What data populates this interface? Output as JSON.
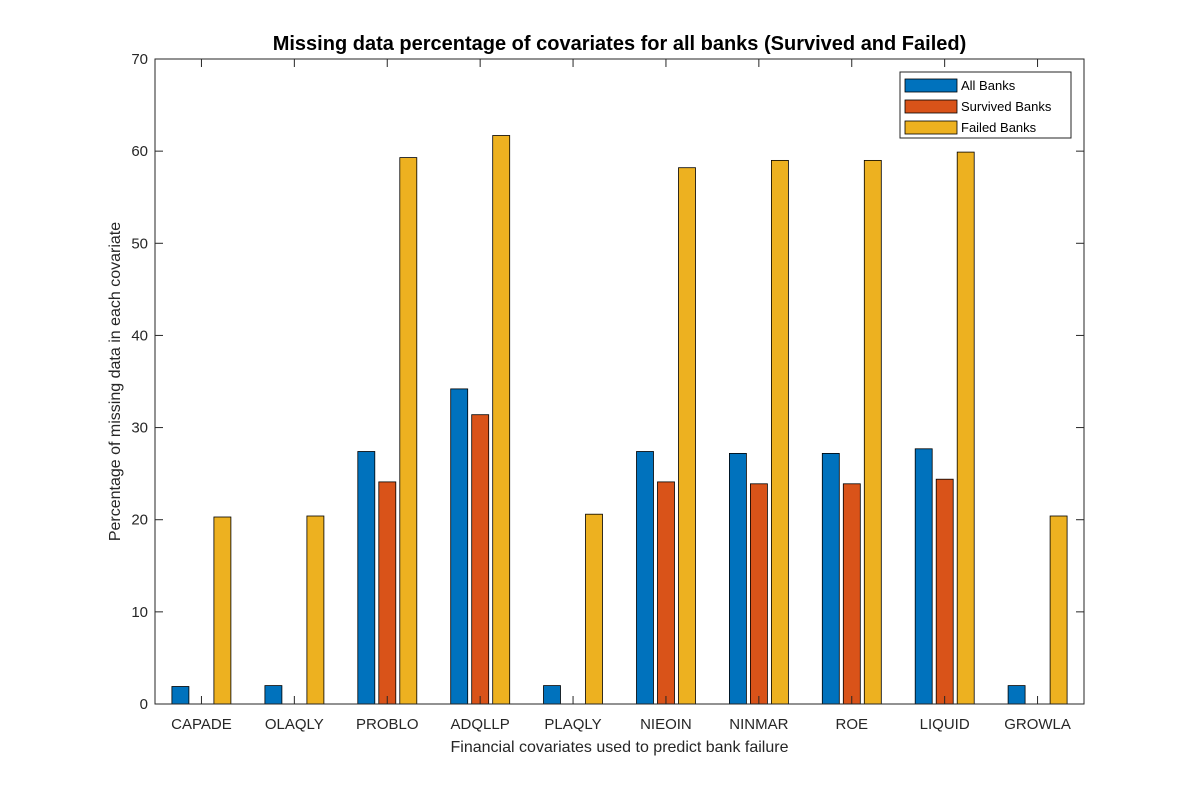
{
  "chart_data": {
    "type": "bar",
    "title": "Missing data percentage of covariates for all banks (Survived and Failed)",
    "xlabel": "Financial covariates used to predict bank failure",
    "ylabel": "Percentage of missing data in each covariate",
    "ylim": [
      0,
      70
    ],
    "yticks": [
      0,
      10,
      20,
      30,
      40,
      50,
      60,
      70
    ],
    "grid": false,
    "legend_position": "top-right",
    "categories": [
      "CAPADE",
      "OLAQLY",
      "PROBLO",
      "ADQLLP",
      "PLAQLY",
      "NIEOIN",
      "NINMAR",
      "ROE",
      "LIQUID",
      "GROWLA"
    ],
    "series": [
      {
        "name": "All Banks",
        "color": "#0072BD",
        "values": [
          1.9,
          2.0,
          27.4,
          34.2,
          2.0,
          27.4,
          27.2,
          27.2,
          27.7,
          2.0
        ]
      },
      {
        "name": "Survived Banks",
        "color": "#D95319",
        "values": [
          0,
          0,
          24.1,
          31.4,
          0,
          24.1,
          23.9,
          23.9,
          24.4,
          0
        ]
      },
      {
        "name": "Failed Banks",
        "color": "#EDB120",
        "values": [
          20.3,
          20.4,
          59.3,
          61.7,
          20.6,
          58.2,
          59.0,
          59.0,
          59.9,
          20.4
        ]
      }
    ]
  }
}
